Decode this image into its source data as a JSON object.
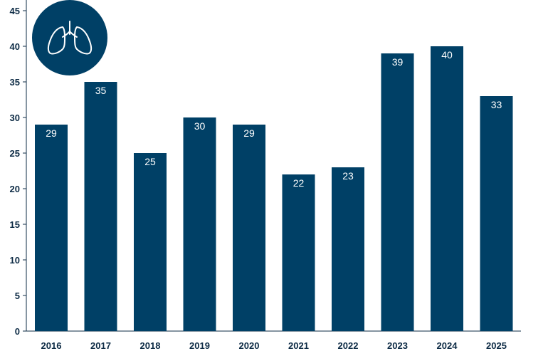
{
  "colors": {
    "bar": "#004066",
    "axis": "#0d2b45",
    "background": "#ffffff",
    "icon_circle": "#004066",
    "icon_stroke": "#ffffff"
  },
  "icon": {
    "name": "lungs-icon"
  },
  "chart_data": {
    "type": "bar",
    "title": "",
    "xlabel": "",
    "ylabel": "",
    "categories": [
      "2016",
      "2017",
      "2018",
      "2019",
      "2020",
      "2021",
      "2022",
      "2023",
      "2024",
      "2025"
    ],
    "values": [
      29,
      35,
      25,
      30,
      29,
      22,
      23,
      39,
      40,
      33
    ],
    "data_labels": [
      "29",
      "35",
      "25",
      "30",
      "29",
      "22",
      "23",
      "39",
      "40",
      "33"
    ],
    "ylim": [
      0,
      45
    ],
    "yticks": [
      "0",
      "5",
      "10",
      "15",
      "20",
      "25",
      "30",
      "35",
      "40",
      "45"
    ],
    "grid": false,
    "legend": "none"
  }
}
